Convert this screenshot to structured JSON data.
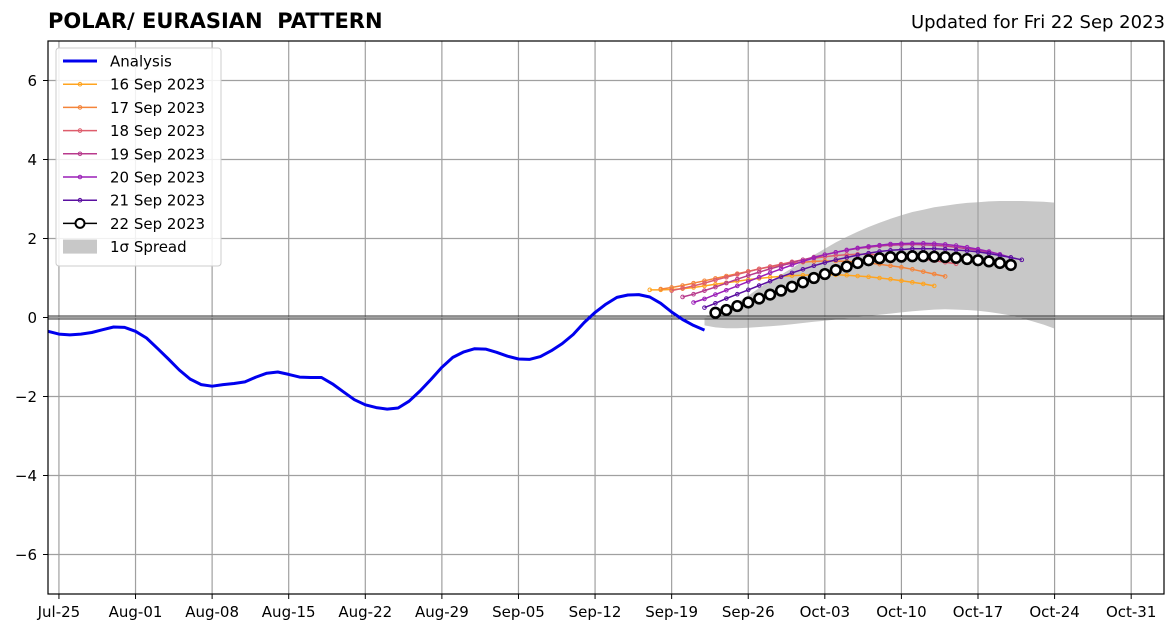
{
  "title": "POLAR/ EURASIAN  PATTERN",
  "subtitle": "Updated for Fri 22 Sep 2023",
  "chart_data": {
    "type": "line",
    "ylim": [
      -7,
      7
    ],
    "y_ticks": [
      -6,
      -4,
      -2,
      0,
      2,
      4,
      6
    ],
    "y_tick_labels": [
      "−6",
      "−4",
      "−2",
      "0",
      "2",
      "4",
      "6"
    ],
    "xlim": [
      "2023-07-24",
      "2023-11-03"
    ],
    "x_ticks": [
      "2023-07-25",
      "2023-08-01",
      "2023-08-08",
      "2023-08-15",
      "2023-08-22",
      "2023-08-29",
      "2023-09-05",
      "2023-09-12",
      "2023-09-19",
      "2023-09-26",
      "2023-10-03",
      "2023-10-10",
      "2023-10-17",
      "2023-10-24",
      "2023-10-31"
    ],
    "x_tick_labels": [
      "Jul-25",
      "Aug-01",
      "Aug-08",
      "Aug-15",
      "Aug-22",
      "Aug-29",
      "Sep-05",
      "Sep-12",
      "Sep-19",
      "Sep-26",
      "Oct-03",
      "Oct-10",
      "Oct-17",
      "Oct-24",
      "Oct-31"
    ],
    "grid": true,
    "legend_position": "top-left",
    "analysis": {
      "name": "Analysis",
      "color": "#0000ee",
      "start": "2023-07-24",
      "values": [
        -0.35,
        -0.42,
        -0.44,
        -0.42,
        -0.38,
        -0.31,
        -0.24,
        -0.25,
        -0.35,
        -0.52,
        -0.78,
        -1.05,
        -1.33,
        -1.56,
        -1.7,
        -1.74,
        -1.7,
        -1.67,
        -1.63,
        -1.51,
        -1.41,
        -1.38,
        -1.44,
        -1.51,
        -1.52,
        -1.52,
        -1.68,
        -1.88,
        -2.08,
        -2.21,
        -2.28,
        -2.32,
        -2.29,
        -2.12,
        -1.86,
        -1.57,
        -1.26,
        -1.01,
        -0.87,
        -0.79,
        -0.8,
        -0.88,
        -0.98,
        -1.05,
        -1.06,
        -0.99,
        -0.84,
        -0.66,
        -0.43,
        -0.13,
        0.13,
        0.34,
        0.51,
        0.57,
        0.58,
        0.52,
        0.36,
        0.14,
        -0.05,
        -0.2,
        -0.32
      ]
    },
    "series": [
      {
        "name": "16 Sep 2023",
        "color": "#ffa41f",
        "start": "2023-09-17",
        "values": [
          0.7,
          0.7,
          0.71,
          0.73,
          0.76,
          0.8,
          0.84,
          0.88,
          0.92,
          0.96,
          0.99,
          1.02,
          1.04,
          1.06,
          1.07,
          1.08,
          1.08,
          1.08,
          1.07,
          1.05,
          1.03,
          1.0,
          0.97,
          0.93,
          0.89,
          0.85,
          0.8
        ]
      },
      {
        "name": "17 Sep 2023",
        "color": "#f4843a",
        "start": "2023-09-18",
        "values": [
          0.72,
          0.76,
          0.81,
          0.87,
          0.93,
          0.99,
          1.05,
          1.11,
          1.17,
          1.23,
          1.28,
          1.33,
          1.37,
          1.4,
          1.42,
          1.43,
          1.43,
          1.42,
          1.4,
          1.38,
          1.35,
          1.31,
          1.27,
          1.22,
          1.16,
          1.1,
          1.04
        ]
      },
      {
        "name": "18 Sep 2023",
        "color": "#de5d6c",
        "start": "2023-09-19",
        "values": [
          0.68,
          0.74,
          0.8,
          0.87,
          0.95,
          1.02,
          1.09,
          1.16,
          1.23,
          1.29,
          1.35,
          1.41,
          1.46,
          1.5,
          1.54,
          1.57,
          1.59,
          1.6,
          1.6,
          1.59,
          1.57,
          1.55,
          1.52,
          1.48,
          1.44,
          1.4,
          1.36
        ]
      },
      {
        "name": "19 Sep 2023",
        "color": "#b83a8c",
        "start": "2023-09-20",
        "values": [
          0.52,
          0.59,
          0.68,
          0.77,
          0.87,
          0.97,
          1.06,
          1.15,
          1.23,
          1.31,
          1.39,
          1.46,
          1.53,
          1.59,
          1.65,
          1.7,
          1.75,
          1.78,
          1.81,
          1.83,
          1.84,
          1.85,
          1.84,
          1.83,
          1.81,
          1.78,
          1.74,
          1.7,
          1.65
        ]
      },
      {
        "name": "20 Sep 2023",
        "color": "#9a1fb7",
        "start": "2023-09-21",
        "values": [
          0.38,
          0.47,
          0.58,
          0.69,
          0.8,
          0.91,
          1.02,
          1.13,
          1.23,
          1.33,
          1.42,
          1.51,
          1.59,
          1.65,
          1.71,
          1.76,
          1.8,
          1.83,
          1.86,
          1.87,
          1.88,
          1.88,
          1.87,
          1.85,
          1.82,
          1.78,
          1.73,
          1.67,
          1.6,
          1.52
        ]
      },
      {
        "name": "21 Sep 2023",
        "color": "#5a0fa0",
        "start": "2023-09-22",
        "values": [
          0.25,
          0.36,
          0.48,
          0.59,
          0.7,
          0.81,
          0.92,
          1.03,
          1.13,
          1.22,
          1.31,
          1.39,
          1.46,
          1.52,
          1.58,
          1.63,
          1.67,
          1.7,
          1.72,
          1.74,
          1.74,
          1.74,
          1.73,
          1.71,
          1.69,
          1.66,
          1.62,
          1.57,
          1.52,
          1.46
        ]
      },
      {
        "name": "22 Sep 2023",
        "color": "#000000",
        "start": "2023-09-23",
        "marker": "open-circle",
        "values": [
          0.12,
          0.19,
          0.29,
          0.38,
          0.48,
          0.58,
          0.68,
          0.78,
          0.89,
          1.0,
          1.1,
          1.2,
          1.29,
          1.38,
          1.45,
          1.5,
          1.53,
          1.54,
          1.55,
          1.55,
          1.54,
          1.53,
          1.51,
          1.48,
          1.45,
          1.42,
          1.38,
          1.33
        ]
      }
    ],
    "spread": {
      "name": "1σ Spread",
      "color": "#c8c8c8",
      "start": "2023-09-22",
      "upper": [
        0.0,
        0.1,
        0.22,
        0.38,
        0.55,
        0.75,
        0.92,
        1.08,
        1.25,
        1.42,
        1.58,
        1.74,
        1.9,
        2.04,
        2.17,
        2.29,
        2.4,
        2.5,
        2.59,
        2.67,
        2.73,
        2.79,
        2.83,
        2.87,
        2.9,
        2.92,
        2.94,
        2.95,
        2.95,
        2.95,
        2.94,
        2.93,
        2.91
      ],
      "lower": [
        -0.2,
        -0.25,
        -0.27,
        -0.27,
        -0.26,
        -0.24,
        -0.22,
        -0.2,
        -0.17,
        -0.14,
        -0.11,
        -0.08,
        -0.05,
        -0.02,
        0.01,
        0.04,
        0.07,
        0.1,
        0.13,
        0.16,
        0.18,
        0.2,
        0.21,
        0.2,
        0.19,
        0.17,
        0.14,
        0.1,
        0.05,
        -0.02,
        -0.1,
        -0.18,
        -0.28
      ]
    }
  }
}
